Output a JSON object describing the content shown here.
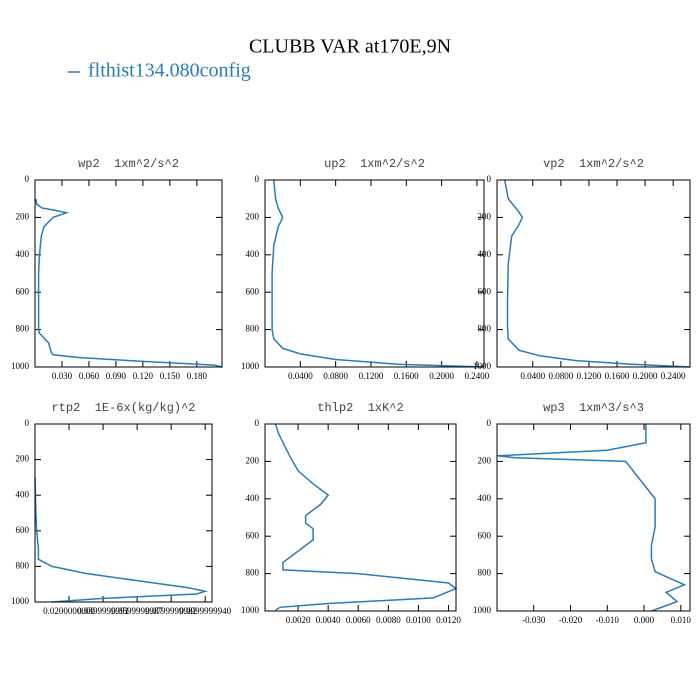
{
  "title": "CLUBB VAR at170E,9N",
  "legend": {
    "name": "flthist134.080config",
    "color": "#2b7bb4"
  },
  "chart_data": [
    {
      "type": "line",
      "title": "wp2  1xm^2/s^2",
      "x": [
        0.001,
        0.002,
        0.008,
        0.02,
        0.035,
        0.02,
        0.01,
        0.007,
        0.005,
        0.004,
        0.004,
        0.004,
        0.004,
        0.005,
        0.015,
        0.018,
        0.02,
        0.05,
        0.12,
        0.2,
        0.208
      ],
      "values": [
        100,
        130,
        150,
        160,
        175,
        200,
        250,
        300,
        400,
        500,
        600,
        700,
        800,
        820,
        870,
        920,
        935,
        950,
        970,
        990,
        1000
      ],
      "xlim": [
        0,
        0.208
      ],
      "xticks": [
        {
          "value": 0.03,
          "label": "0.030"
        },
        {
          "value": 0.06,
          "label": "0.060"
        },
        {
          "value": 0.09,
          "label": "0.090"
        },
        {
          "value": 0.12,
          "label": "0.120"
        },
        {
          "value": 0.15,
          "label": "0.150"
        },
        {
          "value": 0.18,
          "label": "0.180"
        }
      ],
      "ylim": [
        0,
        1000
      ],
      "y_inverted": true,
      "yticks": [
        0,
        200,
        400,
        600,
        800,
        1000
      ]
    },
    {
      "type": "line",
      "title": "up2  1xm^2/s^2",
      "x": [
        0.01,
        0.012,
        0.015,
        0.02,
        0.015,
        0.01,
        0.008,
        0.008,
        0.008,
        0.01,
        0.02,
        0.04,
        0.08,
        0.15,
        0.248
      ],
      "values": [
        0,
        100,
        150,
        200,
        250,
        350,
        500,
        700,
        800,
        850,
        900,
        930,
        960,
        985,
        1000
      ],
      "xlim": [
        0,
        0.248
      ],
      "xticks": [
        {
          "value": 0.04,
          "label": "0.0400"
        },
        {
          "value": 0.08,
          "label": "0.0800"
        },
        {
          "value": 0.12,
          "label": "0.1200"
        },
        {
          "value": 0.16,
          "label": "0.1600"
        },
        {
          "value": 0.2,
          "label": "0.2000"
        },
        {
          "value": 0.24,
          "label": "0.2400"
        }
      ],
      "ylim": [
        0,
        1000
      ],
      "y_inverted": true,
      "yticks": [
        0,
        200,
        400,
        600,
        800,
        1000
      ]
    },
    {
      "type": "line",
      "title": "vp2  1xm^2/s^2",
      "x": [
        0.0,
        0.005,
        0.02,
        0.025,
        0.02,
        0.01,
        0.005,
        0.004,
        0.004,
        0.005,
        0.02,
        0.05,
        0.1,
        0.18,
        0.264
      ],
      "values": [
        0,
        100,
        170,
        200,
        240,
        300,
        450,
        650,
        780,
        850,
        910,
        940,
        965,
        985,
        1000
      ],
      "xlim": [
        -0.011,
        0.264
      ],
      "xticks": [
        {
          "value": 0.04,
          "label": "0.0400"
        },
        {
          "value": 0.08,
          "label": "0.0800"
        },
        {
          "value": 0.12,
          "label": "0.1200"
        },
        {
          "value": 0.16,
          "label": "0.1600"
        },
        {
          "value": 0.2,
          "label": "0.2000"
        },
        {
          "value": 0.24,
          "label": "0.2400"
        }
      ],
      "ylim": [
        0,
        1000
      ],
      "y_inverted": true,
      "yticks": [
        0,
        200,
        400,
        600,
        800,
        1000
      ]
    },
    {
      "type": "line",
      "title": "rtp2  1E-6x(kg/kg)^2",
      "x": [
        0.0,
        0.0005,
        0.001,
        0.002,
        0.002,
        0.01,
        0.03,
        0.06,
        0.09,
        0.1,
        0.095,
        0.04,
        0.01
      ],
      "values": [
        300,
        500,
        600,
        700,
        760,
        800,
        840,
        880,
        920,
        940,
        955,
        980,
        1000
      ],
      "xlim": [
        0,
        0.104
      ],
      "xticks": [
        {
          "value": 0.02,
          "label": "0.0200000000"
        },
        {
          "value": 0.04,
          "label": "0.0399999991"
        },
        {
          "value": 0.06,
          "label": "0.0599999987"
        },
        {
          "value": 0.08,
          "label": "0.0799999982"
        },
        {
          "value": 0.1,
          "label": "0.0999999940"
        }
      ],
      "ylim": [
        0,
        1000
      ],
      "y_inverted": true,
      "yticks": [
        0,
        200,
        400,
        600,
        800,
        1000
      ]
    },
    {
      "type": "line",
      "title": "thlp2  1xK^2",
      "x": [
        0.0005,
        0.0007,
        0.001,
        0.0015,
        0.002,
        0.003,
        0.004,
        0.0035,
        0.0025,
        0.0025,
        0.003,
        0.003,
        0.002,
        0.001,
        0.001,
        0.006,
        0.012,
        0.0125,
        0.011,
        0.004,
        0.0008,
        0.0005
      ],
      "values": [
        0,
        50,
        100,
        180,
        250,
        320,
        380,
        430,
        490,
        530,
        560,
        620,
        680,
        740,
        780,
        800,
        850,
        880,
        930,
        960,
        980,
        995
      ],
      "xlim": [
        -0.0002,
        0.0125
      ],
      "xticks": [
        {
          "value": 0.002,
          "label": "0.0020"
        },
        {
          "value": 0.004,
          "label": "0.0040"
        },
        {
          "value": 0.006,
          "label": "0.0060"
        },
        {
          "value": 0.008,
          "label": "0.0080"
        },
        {
          "value": 0.01,
          "label": "0.0100"
        },
        {
          "value": 0.012,
          "label": "0.0120"
        }
      ],
      "ylim": [
        0,
        1000
      ],
      "y_inverted": true,
      "yticks": [
        0,
        200,
        400,
        600,
        800,
        1000
      ]
    },
    {
      "type": "line",
      "title": "wp3  1xm^3/s^3",
      "x": [
        0.0005,
        0.0005,
        -0.01,
        -0.04,
        -0.035,
        -0.005,
        -0.001,
        0.003,
        0.003,
        0.003,
        0.002,
        0.002,
        0.003,
        0.011,
        0.006,
        0.009,
        0.002
      ],
      "values": [
        0,
        100,
        140,
        170,
        180,
        200,
        300,
        400,
        500,
        550,
        650,
        720,
        790,
        860,
        900,
        950,
        1000
      ],
      "xlim": [
        -0.04,
        0.0125
      ],
      "xticks": [
        {
          "value": -0.03,
          "label": "-0.030"
        },
        {
          "value": -0.02,
          "label": "-0.020"
        },
        {
          "value": -0.01,
          "label": "-0.010"
        },
        {
          "value": 0,
          "label": "0.000"
        },
        {
          "value": 0.01,
          "label": "0.010"
        }
      ],
      "ylim": [
        0,
        1000
      ],
      "y_inverted": true,
      "yticks": [
        0,
        200,
        400,
        600,
        800,
        1000
      ]
    }
  ]
}
